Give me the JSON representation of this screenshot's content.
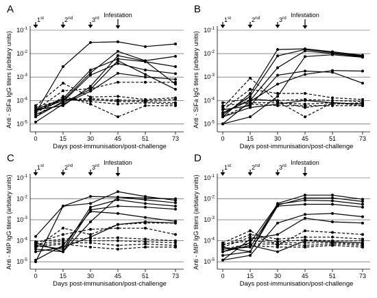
{
  "chart_data": [
    {
      "panel": "A",
      "type": "line",
      "xlabel": "Days post-immunisation/post-challenge",
      "ylabel": "Anti - SIFa IgG   titers (arbitary units)",
      "x": [
        0,
        15,
        30,
        45,
        51,
        73
      ],
      "yscale": "log",
      "ylim": [
        6e-06,
        0.1
      ],
      "yticks": [
        {
          "v": 0.1,
          "label": "10-1"
        },
        {
          "v": 0.01,
          "label": "10-2"
        },
        {
          "v": 0.001,
          "label": "10-3"
        },
        {
          "v": 0.0001,
          "label": "10-4"
        },
        {
          "v": 1e-05,
          "label": "10-5"
        }
      ],
      "markers": [
        {
          "day": 0,
          "label": "1st"
        },
        {
          "day": 15,
          "label": "2nd"
        },
        {
          "day": 30,
          "label": "3rd"
        },
        {
          "day": 45,
          "label": "Infestation"
        }
      ],
      "series": [
        {
          "style": "solid",
          "values": [
            3e-05,
            0.0028,
            0.03,
            0.032,
            0.02,
            0.026
          ]
        },
        {
          "style": "solid",
          "values": [
            3.5e-05,
            0.0001,
            0.0015,
            0.0125,
            0.005,
            0.0077
          ]
        },
        {
          "style": "solid",
          "values": [
            4e-05,
            0.00012,
            0.002,
            0.006,
            0.0045,
            0.0028
          ]
        },
        {
          "style": "solid",
          "values": [
            2e-05,
            9e-05,
            0.0012,
            0.0038,
            0.002,
            0.0014
          ]
        },
        {
          "style": "solid",
          "values": [
            4e-05,
            6e-05,
            0.0004,
            0.0082,
            0.0048,
            0.0005
          ]
        },
        {
          "style": "solid",
          "values": [
            2.5e-05,
            8e-05,
            0.0003,
            0.005,
            0.0013,
            0.0003
          ]
        },
        {
          "style": "solid",
          "values": [
            1.2e-05,
            7e-05,
            0.00025,
            0.00145,
            0.001,
            0.0008
          ]
        },
        {
          "style": "dashed",
          "values": [
            4e-05,
            0.00026,
            0.00032,
            0.0006,
            0.0006,
            0.0006
          ]
        },
        {
          "style": "dashed",
          "values": [
            6e-05,
            0.00055,
            0.00014,
            0.00015,
            0.00011,
            0.00013
          ]
        },
        {
          "style": "dashed",
          "values": [
            5e-05,
            0.00011,
            0.00012,
            0.000105,
            0.0001,
            0.00011
          ]
        },
        {
          "style": "dashed",
          "values": [
            4e-05,
            0.0001,
            0.00011,
            9e-05,
            9e-05,
            8e-05
          ]
        },
        {
          "style": "dashed",
          "values": [
            3e-05,
            0.00012,
            9e-05,
            7e-05,
            8e-05,
            7e-05
          ]
        },
        {
          "style": "dashed",
          "values": [
            2e-05,
            0.00015,
            7e-05,
            2e-05,
            6e-05,
            6e-05
          ]
        }
      ]
    },
    {
      "panel": "B",
      "type": "line",
      "xlabel": "Days post-immunisation/post-challenge",
      "ylabel": "Anti - SIFa IgG   titers (arbitary units)",
      "x": [
        0,
        15,
        30,
        45,
        51,
        73
      ],
      "yscale": "log",
      "ylim": [
        6e-06,
        0.1
      ],
      "yticks": [
        {
          "v": 0.1,
          "label": "10-1"
        },
        {
          "v": 0.01,
          "label": "10-2"
        },
        {
          "v": 0.001,
          "label": "10-3"
        },
        {
          "v": 0.0001,
          "label": "10-4"
        },
        {
          "v": 1e-05,
          "label": "10-5"
        }
      ],
      "markers": [
        {
          "day": 0,
          "label": "1st"
        },
        {
          "day": 15,
          "label": "2nd"
        },
        {
          "day": 30,
          "label": "3rd"
        },
        {
          "day": 45,
          "label": "Infestation"
        }
      ],
      "series": [
        {
          "style": "solid",
          "values": [
            2e-05,
            0.0002,
            0.015,
            0.016,
            0.012,
            0.0085
          ]
        },
        {
          "style": "solid",
          "values": [
            2.5e-05,
            0.00015,
            0.008,
            0.015,
            0.011,
            0.008
          ]
        },
        {
          "style": "solid",
          "values": [
            3e-05,
            0.0001,
            0.0025,
            0.013,
            0.01,
            0.0075
          ]
        },
        {
          "style": "solid",
          "values": [
            4e-05,
            6e-05,
            0.0012,
            0.0018,
            0.0016,
            0.00055
          ]
        },
        {
          "style": "solid",
          "values": [
            1e-05,
            9e-05,
            0.0005,
            0.0013,
            0.0019,
            0.0018
          ]
        },
        {
          "style": "solid",
          "values": [
            1e-05,
            2e-05,
            0.00015,
            0.0075,
            0.009,
            0.007
          ]
        },
        {
          "style": "solid",
          "values": [
            2e-05,
            5e-05,
            7e-05,
            0.0001,
            8e-05,
            7e-05
          ]
        },
        {
          "style": "dashed",
          "values": [
            5e-05,
            0.0009,
            9e-05,
            2e-05,
            8e-05,
            6e-05
          ]
        },
        {
          "style": "dashed",
          "values": [
            4e-05,
            0.0003,
            0.0002,
            0.0002,
            0.00013,
            0.00011
          ]
        },
        {
          "style": "dashed",
          "values": [
            3e-05,
            0.00011,
            0.0001,
            0.00011,
            0.0001,
            9e-05
          ]
        },
        {
          "style": "dashed",
          "values": [
            6e-05,
            8e-05,
            8e-05,
            7e-05,
            8e-05,
            7e-05
          ]
        },
        {
          "style": "dashed",
          "values": [
            2e-05,
            7e-05,
            6e-05,
            6e-05,
            6e-05,
            6e-05
          ]
        },
        {
          "style": "dashed",
          "values": [
            8e-05,
            0.00012,
            9e-05,
            5e-05,
            7e-05,
            8e-05
          ]
        }
      ]
    },
    {
      "panel": "C",
      "type": "line",
      "xlabel": "Days post-immunisation/post-challenge",
      "ylabel": "Anti - MIP IgG   titers (arbitary units)",
      "x": [
        0,
        15,
        30,
        45,
        51,
        73
      ],
      "yscale": "log",
      "ylim": [
        6e-06,
        0.1
      ],
      "yticks": [
        {
          "v": 0.1,
          "label": "10-1"
        },
        {
          "v": 0.01,
          "label": "10-2"
        },
        {
          "v": 0.001,
          "label": "10-3"
        },
        {
          "v": 0.0001,
          "label": "10-4"
        },
        {
          "v": 1e-05,
          "label": "10-5"
        }
      ],
      "markers": [
        {
          "day": 0,
          "label": "1st"
        },
        {
          "day": 15,
          "label": "2nd"
        },
        {
          "day": 30,
          "label": "3rd"
        },
        {
          "day": 45,
          "label": "Infestation"
        }
      ],
      "series": [
        {
          "style": "solid",
          "values": [
            0.00016,
            0.0045,
            0.013,
            0.012,
            0.011,
            0.01
          ]
        },
        {
          "style": "solid",
          "values": [
            1e-05,
            0.0045,
            0.006,
            0.022,
            0.013,
            0.0085
          ]
        },
        {
          "style": "solid",
          "values": [
            8e-05,
            3e-05,
            0.0008,
            0.012,
            0.009,
            0.0065
          ]
        },
        {
          "style": "solid",
          "values": [
            6e-05,
            4e-05,
            0.004,
            0.009,
            0.006,
            0.0045
          ]
        },
        {
          "style": "solid",
          "values": [
            4e-05,
            3e-05,
            0.003,
            0.0045,
            0.004,
            0.0032
          ]
        },
        {
          "style": "solid",
          "values": [
            1.2e-05,
            6e-05,
            0.0025,
            0.002,
            0.0013,
            0.00085
          ]
        },
        {
          "style": "solid",
          "values": [
            3e-05,
            5e-05,
            0.00015,
            0.0006,
            0.0008,
            0.0007
          ]
        },
        {
          "style": "dashed",
          "values": [
            5e-05,
            0.0004,
            0.0002,
            0.0006,
            0.0007,
            0.0007
          ]
        },
        {
          "style": "dashed",
          "values": [
            8e-05,
            0.0002,
            0.00035,
            0.0004,
            0.0004,
            0.0002
          ]
        },
        {
          "style": "dashed",
          "values": [
            9e-05,
            0.00012,
            0.00013,
            0.00014,
            0.00012,
            0.0001
          ]
        },
        {
          "style": "dashed",
          "values": [
            7e-05,
            0.0001,
            0.0001,
            0.0001,
            9e-05,
            8e-05
          ]
        },
        {
          "style": "dashed",
          "values": [
            6e-05,
            8e-05,
            8e-05,
            6e-05,
            7e-05,
            6e-05
          ]
        },
        {
          "style": "dashed",
          "values": [
            5e-05,
            7e-05,
            5e-05,
            4e-05,
            5e-05,
            5e-05
          ]
        }
      ]
    },
    {
      "panel": "D",
      "type": "line",
      "xlabel": "Days post-immunisation/post-challenge",
      "ylabel": "Anti - MIP IgG   titers (arbitary units)",
      "x": [
        0,
        15,
        30,
        45,
        51,
        73
      ],
      "yscale": "log",
      "ylim": [
        6e-06,
        0.1
      ],
      "yticks": [
        {
          "v": 0.1,
          "label": "10-1"
        },
        {
          "v": 0.01,
          "label": "10-2"
        },
        {
          "v": 0.001,
          "label": "10-3"
        },
        {
          "v": 0.0001,
          "label": "10-4"
        },
        {
          "v": 1e-05,
          "label": "10-5"
        }
      ],
      "markers": [
        {
          "day": 0,
          "label": "1st"
        },
        {
          "day": 15,
          "label": "2nd"
        },
        {
          "day": 30,
          "label": "3rd"
        },
        {
          "day": 45,
          "label": "Infestation"
        }
      ],
      "series": [
        {
          "style": "solid",
          "values": [
            2e-05,
            3e-05,
            0.006,
            0.015,
            0.015,
            0.0095
          ]
        },
        {
          "style": "solid",
          "values": [
            4e-05,
            5e-05,
            0.005,
            0.011,
            0.011,
            0.0075
          ]
        },
        {
          "style": "solid",
          "values": [
            3e-05,
            8e-05,
            0.0055,
            0.0085,
            0.008,
            0.0055
          ]
        },
        {
          "style": "solid",
          "values": [
            5e-05,
            3e-05,
            0.0045,
            0.0055,
            0.0055,
            0.004
          ]
        },
        {
          "style": "solid",
          "values": [
            1.2e-05,
            2e-05,
            0.0007,
            0.0018,
            0.002,
            0.0014
          ]
        },
        {
          "style": "solid",
          "values": [
            1.2e-05,
            0.00012,
            0.0002,
            0.0012,
            0.0008,
            0.0007
          ]
        },
        {
          "style": "solid",
          "values": [
            3e-05,
            6e-05,
            3e-05,
            0.0001,
            9e-05,
            8e-05
          ]
        },
        {
          "style": "dashed",
          "values": [
            8e-05,
            0.0003,
            6e-05,
            0.0003,
            0.00025,
            0.0002
          ]
        },
        {
          "style": "dashed",
          "values": [
            6e-05,
            0.0002,
            0.00012,
            0.00015,
            0.00015,
            0.00012
          ]
        },
        {
          "style": "dashed",
          "values": [
            5e-05,
            0.00015,
            9e-05,
            0.00011,
            0.0001,
            0.0001
          ]
        },
        {
          "style": "dashed",
          "values": [
            7e-05,
            0.0001,
            8e-05,
            8e-05,
            8e-05,
            7e-05
          ]
        },
        {
          "style": "dashed",
          "values": [
            4e-05,
            7e-05,
            7e-05,
            6e-05,
            7e-05,
            6e-05
          ]
        },
        {
          "style": "dashed",
          "values": [
            3e-05,
            6e-05,
            5e-05,
            5e-05,
            6e-05,
            5e-05
          ]
        }
      ]
    }
  ]
}
